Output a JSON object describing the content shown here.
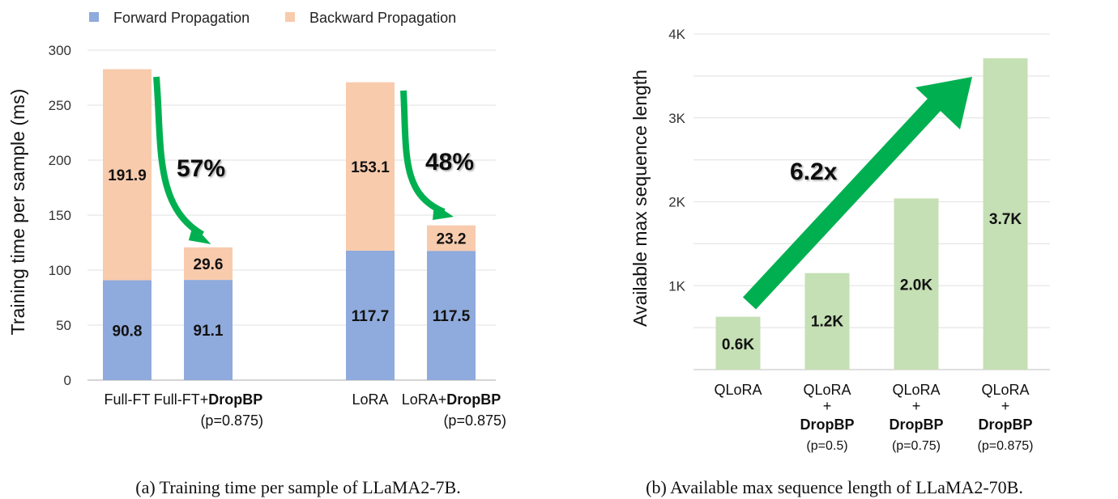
{
  "chart_data": [
    {
      "type": "bar",
      "stacked": true,
      "caption": "(a) Training time per sample of LLaMA2-7B.",
      "ylabel": "Training time per sample (ms)",
      "ylim": [
        0,
        300
      ],
      "yticks": [
        "0",
        "50",
        "100",
        "150",
        "200",
        "250",
        "300"
      ],
      "grid": true,
      "legend_position": "top",
      "categories": [
        {
          "line1": "Full-FT",
          "bold": "",
          "line2": ""
        },
        {
          "line1": "Full-FT+",
          "bold": "DropBP",
          "line2": "(p=0.875)"
        },
        {
          "line1": "",
          "bold": "",
          "line2": ""
        },
        {
          "line1": "LoRA",
          "bold": "",
          "line2": ""
        },
        {
          "line1": "LoRA+",
          "bold": "DropBP",
          "line2": "(p=0.875)"
        }
      ],
      "series": [
        {
          "name": "Forward Propagation",
          "color": "#8faadc",
          "values": [
            90.8,
            91.1,
            null,
            117.7,
            117.5
          ],
          "labels": [
            "90.8",
            "91.1",
            "",
            "117.7",
            "117.5"
          ]
        },
        {
          "name": "Backward Propagation",
          "color": "#f8cbad",
          "values": [
            191.9,
            29.6,
            null,
            153.1,
            23.2
          ],
          "labels": [
            "191.9",
            "29.6",
            "",
            "153.1",
            "23.2"
          ]
        }
      ],
      "annotations": [
        {
          "text": "57%",
          "color": "#00b050"
        },
        {
          "text": "48%",
          "color": "#00b050"
        }
      ]
    },
    {
      "type": "bar",
      "caption": "(b) Available max sequence length of LLaMA2-70B.",
      "ylabel": "Available max sequence length",
      "ylim": [
        0,
        4
      ],
      "yticks": [
        "",
        "1K",
        "2K",
        "3K",
        "4K"
      ],
      "grid": true,
      "color": "#c5e0b4",
      "categories": [
        {
          "line1": "QLoRA",
          "plus": "",
          "bold": "",
          "line2": ""
        },
        {
          "line1": "QLoRA",
          "plus": "+",
          "bold": "DropBP",
          "line2": "(p=0.5)"
        },
        {
          "line1": "QLoRA",
          "plus": "+",
          "bold": "DropBP",
          "line2": "(p=0.75)"
        },
        {
          "line1": "QLoRA",
          "plus": "+",
          "bold": "DropBP",
          "line2": "(p=0.875)"
        }
      ],
      "values": [
        0.63,
        1.15,
        2.04,
        3.71
      ],
      "labels": [
        "0.6K",
        "1.2K",
        "2.0K",
        "3.7K"
      ],
      "annotations": [
        {
          "text": "6.2x",
          "color": "#00b050"
        }
      ]
    }
  ]
}
